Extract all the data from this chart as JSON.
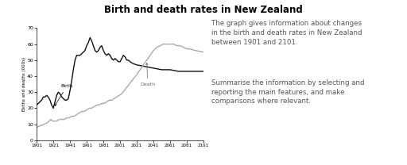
{
  "title": "Birth and death rates in New Zealand",
  "ylabel": "Births and deaths (000s)",
  "xlim": [
    1901,
    2101
  ],
  "ylim": [
    0,
    70
  ],
  "yticks": [
    0,
    10,
    20,
    30,
    40,
    50,
    60,
    70
  ],
  "xticks": [
    1901,
    1921,
    1941,
    1961,
    1981,
    2001,
    2021,
    2041,
    2061,
    2081,
    2101
  ],
  "birth_color": "#111111",
  "death_color": "#aaaaaa",
  "text_para1": "The graph gives information about changes\nin the birth and death rates in New Zealand\nbetween 1901 and 2101.",
  "text_para2": "Summarise the information by selecting and\nreporting the main features, and make\ncomparisons where relevant.",
  "text_color": "#555555",
  "birth_x": [
    1901,
    1903,
    1905,
    1907,
    1909,
    1911,
    1913,
    1915,
    1917,
    1919,
    1921,
    1923,
    1925,
    1927,
    1929,
    1931,
    1933,
    1935,
    1937,
    1939,
    1941,
    1943,
    1945,
    1947,
    1949,
    1951,
    1953,
    1955,
    1957,
    1959,
    1961,
    1963,
    1965,
    1967,
    1969,
    1971,
    1973,
    1975,
    1977,
    1979,
    1981,
    1983,
    1985,
    1987,
    1989,
    1991,
    1993,
    1995,
    1997,
    1999,
    2001,
    2003,
    2005,
    2007,
    2009,
    2011,
    2013,
    2016,
    2021,
    2031,
    2041,
    2051,
    2061,
    2071,
    2081,
    2091,
    2101
  ],
  "birth_y": [
    22,
    23,
    24,
    25,
    27,
    27,
    28,
    27,
    25,
    22,
    20,
    24,
    28,
    30,
    29,
    27,
    26,
    25,
    25,
    26,
    31,
    37,
    44,
    50,
    53,
    53,
    53,
    54,
    55,
    56,
    59,
    61,
    64,
    62,
    59,
    56,
    55,
    56,
    58,
    59,
    56,
    54,
    53,
    54,
    53,
    51,
    50,
    51,
    50,
    49,
    49,
    51,
    53,
    52,
    50,
    50,
    49,
    48,
    47,
    46,
    45,
    44,
    44,
    43,
    43,
    43,
    43
  ],
  "death_x": [
    1901,
    1905,
    1910,
    1914,
    1918,
    1920,
    1922,
    1925,
    1928,
    1931,
    1934,
    1937,
    1940,
    1943,
    1946,
    1949,
    1952,
    1955,
    1958,
    1961,
    1964,
    1967,
    1970,
    1973,
    1976,
    1979,
    1982,
    1985,
    1988,
    1991,
    1994,
    1997,
    2000,
    2003,
    2006,
    2009,
    2012,
    2015,
    2018,
    2021,
    2025,
    2029,
    2033,
    2037,
    2041,
    2045,
    2049,
    2053,
    2057,
    2061,
    2065,
    2069,
    2073,
    2077,
    2081,
    2085,
    2091,
    2101
  ],
  "death_y": [
    8,
    9,
    10,
    11,
    13,
    12,
    12,
    12,
    13,
    13,
    13,
    14,
    14,
    15,
    15,
    16,
    17,
    18,
    18,
    19,
    20,
    20,
    21,
    22,
    22,
    23,
    23,
    24,
    25,
    25,
    26,
    27,
    28,
    29,
    31,
    33,
    35,
    37,
    39,
    41,
    44,
    47,
    50,
    53,
    56,
    58,
    59,
    60,
    60,
    60,
    60,
    59,
    59,
    58,
    57,
    57,
    56,
    55
  ]
}
